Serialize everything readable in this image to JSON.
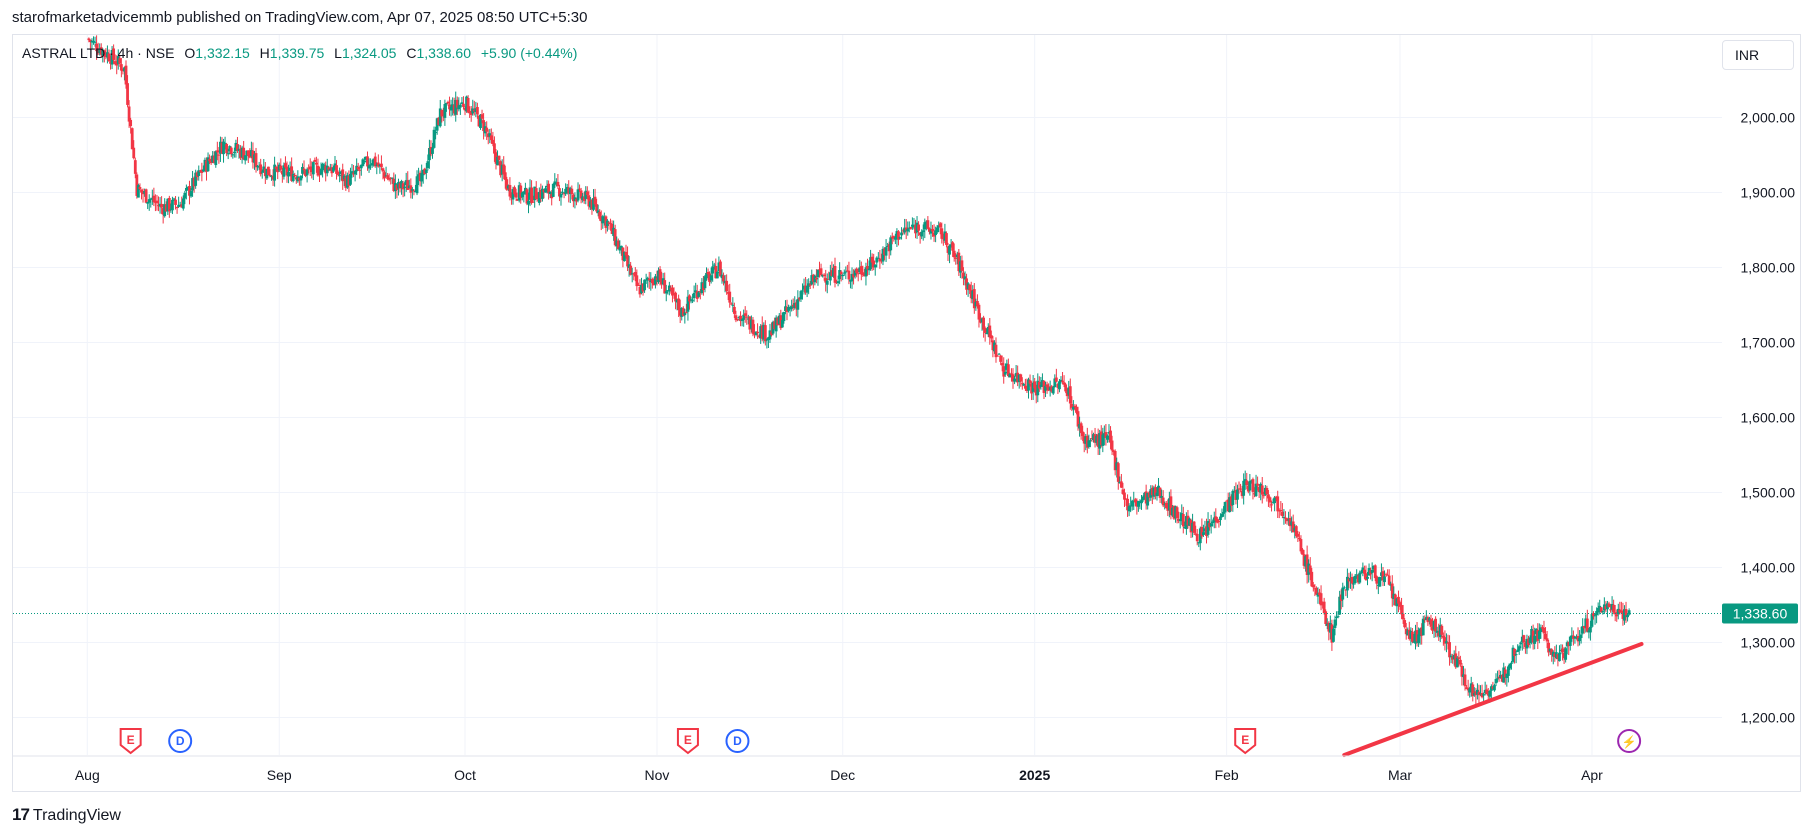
{
  "header": {
    "published_line": "starofmarketadvicemmb published on TradingView.com, Apr 07, 2025 08:50 UTC+5:30"
  },
  "legend": {
    "symbol": "ASTRAL LTD · 4h · NSE",
    "o_label": "O",
    "o_value": "1,332.15",
    "h_label": "H",
    "h_value": "1,339.75",
    "l_label": "L",
    "l_value": "1,324.05",
    "c_label": "C",
    "c_value": "1,338.60",
    "change": "+5.90 (+0.44%)"
  },
  "currency": "INR",
  "price_label": "1,338.60",
  "footer": {
    "logo": "17",
    "brand": "TradingView"
  },
  "colors": {
    "up": "#089981",
    "down": "#f23645",
    "trendline": "#f23645",
    "grid": "#f0f3fa",
    "dividend": "#2962ff",
    "split": "#9c27b0"
  },
  "events": [
    {
      "kind": "earnings",
      "letter": "E",
      "date": "2024-08-08"
    },
    {
      "kind": "dividend",
      "letter": "D",
      "date": "2024-08-16"
    },
    {
      "kind": "earnings",
      "letter": "E",
      "date": "2024-11-06"
    },
    {
      "kind": "dividend",
      "letter": "D",
      "date": "2024-11-14"
    },
    {
      "kind": "earnings",
      "letter": "E",
      "date": "2025-02-04"
    },
    {
      "kind": "flash",
      "letter": "⚡",
      "date": "2025-04-07"
    }
  ],
  "chart_data": {
    "type": "candlestick",
    "title": "ASTRAL LTD · 4h · NSE",
    "x_axis": {
      "type": "date",
      "range": [
        "2024-07-20",
        "2025-04-22"
      ],
      "ticks": [
        {
          "date": "2024-08-01",
          "label": "Aug"
        },
        {
          "date": "2024-09-01",
          "label": "Sep"
        },
        {
          "date": "2024-10-01",
          "label": "Oct"
        },
        {
          "date": "2024-11-01",
          "label": "Nov"
        },
        {
          "date": "2024-12-01",
          "label": "Dec"
        },
        {
          "date": "2025-01-01",
          "label": "2025",
          "bold": true
        },
        {
          "date": "2025-02-01",
          "label": "Feb"
        },
        {
          "date": "2025-03-01",
          "label": "Mar"
        },
        {
          "date": "2025-04-01",
          "label": "Apr"
        }
      ]
    },
    "y_axis": {
      "range": [
        1150,
        2110
      ],
      "ticks": [
        1200,
        1300,
        1400,
        1500,
        1600,
        1700,
        1800,
        1900,
        2000
      ],
      "tick_labels": [
        "1,200.00",
        "1,300.00",
        "1,400.00",
        "1,500.00",
        "1,600.00",
        "1,700.00",
        "1,800.00",
        "1,900.00",
        "2,000.00"
      ],
      "position": "right"
    },
    "grid": true,
    "last_price": 1338.6,
    "close_path": [
      [
        "2024-08-01",
        2105
      ],
      [
        "2024-08-05",
        2080
      ],
      [
        "2024-08-07",
        2065
      ],
      [
        "2024-08-09",
        1905
      ],
      [
        "2024-08-13",
        1880
      ],
      [
        "2024-08-16",
        1885
      ],
      [
        "2024-08-20",
        1935
      ],
      [
        "2024-08-23",
        1965
      ],
      [
        "2024-08-27",
        1950
      ],
      [
        "2024-08-30",
        1928
      ],
      [
        "2024-09-04",
        1925
      ],
      [
        "2024-09-09",
        1935
      ],
      [
        "2024-09-12",
        1915
      ],
      [
        "2024-09-16",
        1945
      ],
      [
        "2024-09-20",
        1905
      ],
      [
        "2024-09-24",
        1915
      ],
      [
        "2024-09-27",
        2005
      ],
      [
        "2024-10-01",
        2020
      ],
      [
        "2024-10-04",
        1990
      ],
      [
        "2024-10-08",
        1905
      ],
      [
        "2024-10-11",
        1895
      ],
      [
        "2024-10-16",
        1905
      ],
      [
        "2024-10-21",
        1890
      ],
      [
        "2024-10-24",
        1860
      ],
      [
        "2024-10-29",
        1770
      ],
      [
        "2024-11-01",
        1790
      ],
      [
        "2024-11-05",
        1740
      ],
      [
        "2024-11-08",
        1775
      ],
      [
        "2024-11-11",
        1800
      ],
      [
        "2024-11-14",
        1735
      ],
      [
        "2024-11-19",
        1710
      ],
      [
        "2024-11-22",
        1740
      ],
      [
        "2024-11-27",
        1790
      ],
      [
        "2024-12-02",
        1790
      ],
      [
        "2024-12-06",
        1805
      ],
      [
        "2024-12-10",
        1845
      ],
      [
        "2024-12-13",
        1855
      ],
      [
        "2024-12-17",
        1845
      ],
      [
        "2024-12-20",
        1800
      ],
      [
        "2024-12-24",
        1720
      ],
      [
        "2024-12-27",
        1665
      ],
      [
        "2025-01-01",
        1640
      ],
      [
        "2025-01-06",
        1645
      ],
      [
        "2025-01-09",
        1570
      ],
      [
        "2025-01-13",
        1570
      ],
      [
        "2025-01-16",
        1480
      ],
      [
        "2025-01-21",
        1500
      ],
      [
        "2025-01-24",
        1470
      ],
      [
        "2025-01-28",
        1440
      ],
      [
        "2025-01-31",
        1475
      ],
      [
        "2025-02-04",
        1510
      ],
      [
        "2025-02-07",
        1505
      ],
      [
        "2025-02-11",
        1470
      ],
      [
        "2025-02-14",
        1400
      ],
      [
        "2025-02-18",
        1310
      ],
      [
        "2025-02-20",
        1380
      ],
      [
        "2025-02-24",
        1395
      ],
      [
        "2025-02-27",
        1380
      ],
      [
        "2025-03-03",
        1300
      ],
      [
        "2025-03-05",
        1325
      ],
      [
        "2025-03-07",
        1320
      ],
      [
        "2025-03-10",
        1275
      ],
      [
        "2025-03-13",
        1230
      ],
      [
        "2025-03-17",
        1245
      ],
      [
        "2025-03-20",
        1300
      ],
      [
        "2025-03-24",
        1315
      ],
      [
        "2025-03-26",
        1275
      ],
      [
        "2025-03-28",
        1295
      ],
      [
        "2025-04-01",
        1330
      ],
      [
        "2025-04-03",
        1350
      ],
      [
        "2025-04-07",
        1338.6
      ]
    ],
    "annotations": [
      {
        "type": "trendline",
        "color": "#f23645",
        "points": [
          [
            "2025-02-20",
            1145
          ],
          [
            "2025-04-09",
            1298
          ]
        ]
      },
      {
        "type": "hline",
        "style": "dotted",
        "value": 1338.6
      }
    ]
  }
}
